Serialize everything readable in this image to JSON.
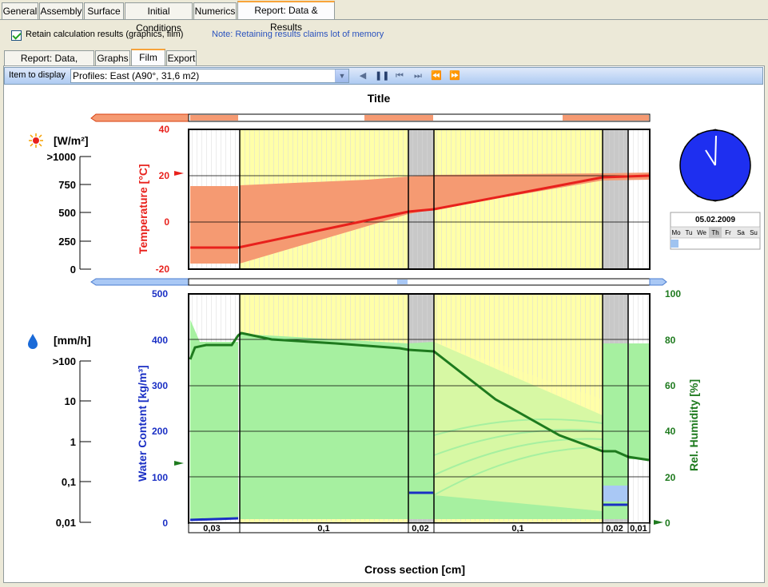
{
  "main_tabs": [
    {
      "label": "General"
    },
    {
      "label": "Assembly"
    },
    {
      "label": "Surface"
    },
    {
      "label": "Initial Conditions"
    },
    {
      "label": "Numerics"
    },
    {
      "label": "Report: Data & Results"
    }
  ],
  "options": {
    "retain_label": "Retain calculation results (graphics, film)",
    "retain_checked": true,
    "note": "Note: Retaining results claims lot of memory"
  },
  "sub_tabs": [
    {
      "label": "Report: Data, Results"
    },
    {
      "label": "Graphs"
    },
    {
      "label": "Film"
    },
    {
      "label": "Export"
    }
  ],
  "film": {
    "item_label": "Item to display",
    "item_value": "Profiles: East (A90°, 31,6 m2)"
  },
  "colors": {
    "temperature": "#e8211c",
    "temp_band": "#f59a72",
    "water": "#1a2fc4",
    "humidity": "#1e7a1e",
    "rh_band": "#a6f0a0",
    "layer_yellow": "#ffffa8",
    "layer_gray": "#c8c8c8",
    "clock": "#1e2ff0"
  },
  "chart_data": [
    {
      "type": "line",
      "title": "Title",
      "ylabel": "Temperature [°C]",
      "ylim": [
        -20,
        40
      ],
      "yticks": [
        "40",
        "20",
        "0",
        "-20"
      ],
      "series": [
        {
          "x": [
            0,
            0.03,
            0.13,
            0.15,
            0.25,
            0.27,
            0.28
          ],
          "values": [
            -10,
            -10,
            4.5,
            5.2,
            19,
            19.5,
            19.7
          ]
        }
      ]
    },
    {
      "type": "line",
      "xlabel": "Cross section [cm]",
      "ylabel": "Water Content [kg/m³]",
      "ylabel2": "Rel. Humidity [%]",
      "ylim": [
        0,
        500
      ],
      "ylim2": [
        0,
        100
      ],
      "yticks": [
        "500",
        "400",
        "300",
        "200",
        "100",
        "0"
      ],
      "yticks2": [
        "100",
        "80",
        "60",
        "40",
        "20",
        "0"
      ],
      "layers": [
        "0,03",
        "0,1",
        "0,02",
        "0,1",
        "0,02",
        "0,01"
      ],
      "series": [
        {
          "name": "Rel. Humidity",
          "x": [
            0,
            0.002,
            0.006,
            0.03,
            0.031,
            0.06,
            0.13,
            0.15,
            0.19,
            0.23,
            0.25,
            0.27,
            0.28
          ],
          "values": [
            70,
            76,
            78,
            78,
            83,
            80,
            76,
            74,
            56,
            39,
            31,
            30,
            27
          ]
        }
      ]
    }
  ],
  "legend": {
    "radiation_unit": "[W/m²]",
    "radiation_scale": [
      ">1000",
      "750",
      "500",
      "250",
      "0"
    ],
    "rain_unit": "[mm/h]",
    "rain_scale": [
      ">100",
      "10",
      "1",
      "0,1",
      "0,01"
    ]
  },
  "calendar": {
    "date": "05.02.2009",
    "days": [
      "Mo",
      "Tu",
      "We",
      "Th",
      "Fr",
      "Sa",
      "Su"
    ]
  }
}
